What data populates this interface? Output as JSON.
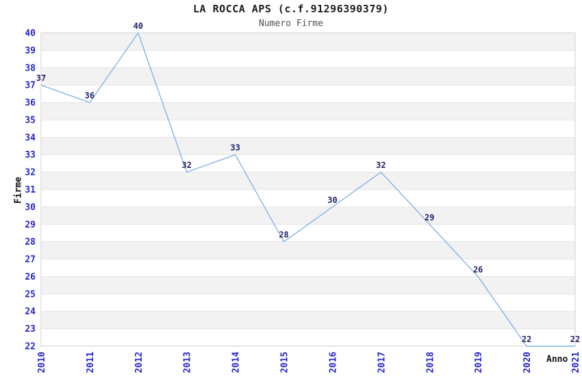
{
  "chart_data": {
    "type": "line",
    "title": "LA ROCCA APS (c.f.91296390379)",
    "subtitle": "Numero Firme",
    "xlabel": "Anno",
    "ylabel": "Firme",
    "categories": [
      "2010",
      "2011",
      "2012",
      "2013",
      "2014",
      "2015",
      "2016",
      "2017",
      "2018",
      "2019",
      "2020",
      "2021"
    ],
    "values": [
      37,
      36,
      40,
      32,
      33,
      28,
      30,
      32,
      29,
      26,
      22,
      22
    ],
    "ylim": [
      22,
      40
    ],
    "ytick_step": 1,
    "grid": "horizontal-bands-alternating",
    "legend": "none",
    "markers": "none",
    "point_labels_shown": true,
    "colors": {
      "line": "#85b2e6",
      "tick_label": "#2525cd",
      "point_label": "#23236b",
      "band": "#f2f2f2",
      "band_alt": "#ffffff",
      "grid_line": "#e4e4e4",
      "plot_border": "#d8d8d8",
      "title": "#1c1c1c",
      "subtitle": "#4f4f4f",
      "axis_title": "#111111",
      "background": "#ffffff"
    }
  }
}
